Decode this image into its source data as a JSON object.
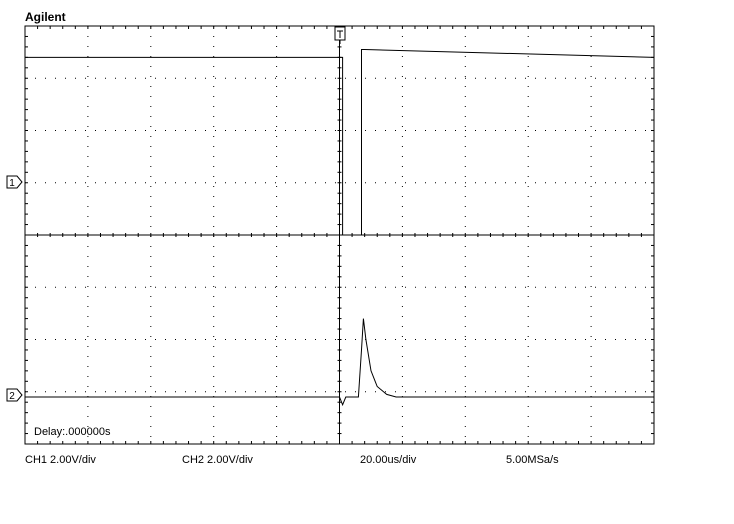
{
  "header": {
    "brand": "Agilent"
  },
  "status": {
    "ch1_scale": "CH1 2.00V/div",
    "ch2_scale": "CH2 2.00V/div",
    "timebase": "20.00us/div",
    "sample_rate": "5.00MSa/s",
    "delay": "Delay:.000000s"
  },
  "channels": {
    "ch1_marker": "1",
    "ch2_marker": "2"
  },
  "colors": {
    "trace": "#000000",
    "grid": "#000000",
    "background": "#ffffff"
  },
  "chart_data": {
    "type": "line",
    "grid": true,
    "x_divisions": 10,
    "y_divisions": 8,
    "xlim": [
      0,
      10
    ],
    "ylim": [
      -4,
      4
    ],
    "series": [
      {
        "x": [
          0,
          5.05,
          5.05,
          5.35,
          5.35,
          5.4,
          10
        ],
        "y": [
          3.4,
          3.4,
          0,
          0,
          3.55,
          3.55,
          3.4
        ]
      },
      {
        "x": [
          0,
          5.0,
          5.05,
          5.1,
          5.3,
          5.35,
          5.38,
          5.42,
          5.5,
          5.6,
          5.75,
          5.9,
          10
        ],
        "y": [
          -3.1,
          -3.1,
          -3.25,
          -3.1,
          -3.1,
          -2.2,
          -1.6,
          -2.0,
          -2.6,
          -2.9,
          -3.05,
          -3.1,
          -3.1
        ]
      }
    ]
  }
}
